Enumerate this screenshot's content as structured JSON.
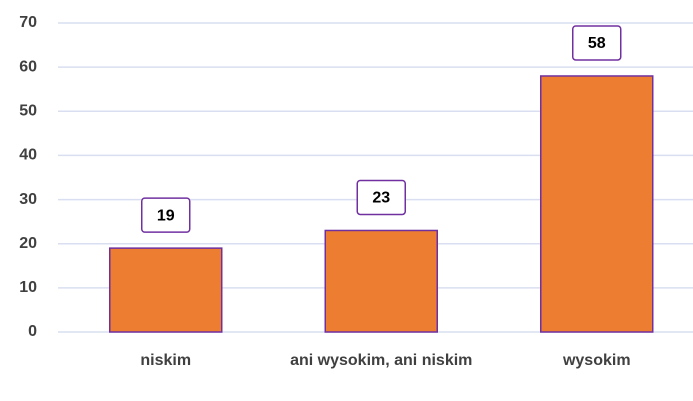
{
  "chart_data": {
    "type": "bar",
    "categories": [
      "niskim",
      "ani wysokim, ani niskim",
      "wysokim"
    ],
    "values": [
      19,
      23,
      58
    ],
    "color": "#ED7D31",
    "edge_color": "#7030A0",
    "ylim": [
      0,
      70
    ],
    "yticks": [
      0,
      10,
      20,
      30,
      40,
      50,
      60,
      70
    ],
    "grid": true
  }
}
